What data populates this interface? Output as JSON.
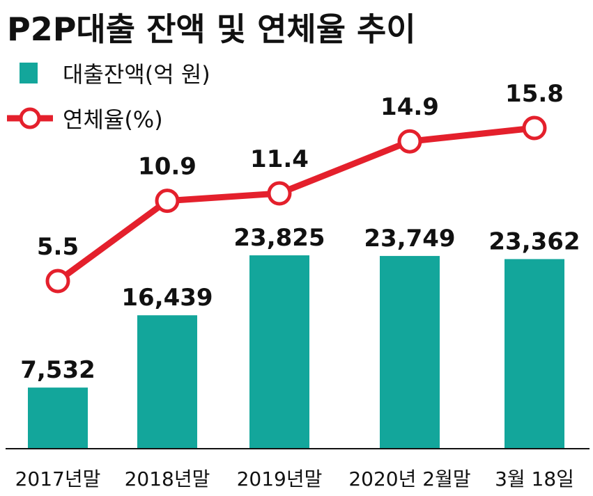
{
  "chart_data": {
    "type": "bar",
    "title": "P2P대출 잔액 및 연체율 추이",
    "categories": [
      "2017년말",
      "2018년말",
      "2019년말",
      "2020년 2월말",
      "3월 18일"
    ],
    "series": [
      {
        "name": "대출잔액(억 원)",
        "type": "bar",
        "values": [
          7532,
          16439,
          23825,
          23749,
          23362
        ],
        "labels": [
          "7,532",
          "16,439",
          "23,825",
          "23,749",
          "23,362"
        ],
        "color": "#13a69b"
      },
      {
        "name": "연체율(%)",
        "type": "line",
        "values": [
          5.5,
          10.9,
          11.4,
          14.9,
          15.8
        ],
        "labels": [
          "5.5",
          "10.9",
          "11.4",
          "14.9",
          "15.8"
        ],
        "color": "#e4202c"
      }
    ],
    "xlabel": "",
    "ylabel": "",
    "bar_ylim": [
      0,
      30000
    ],
    "line_ylim": [
      0,
      20
    ]
  },
  "legend": {
    "bar_label": "대출잔액(억 원)",
    "line_label": "연체율(%)"
  }
}
